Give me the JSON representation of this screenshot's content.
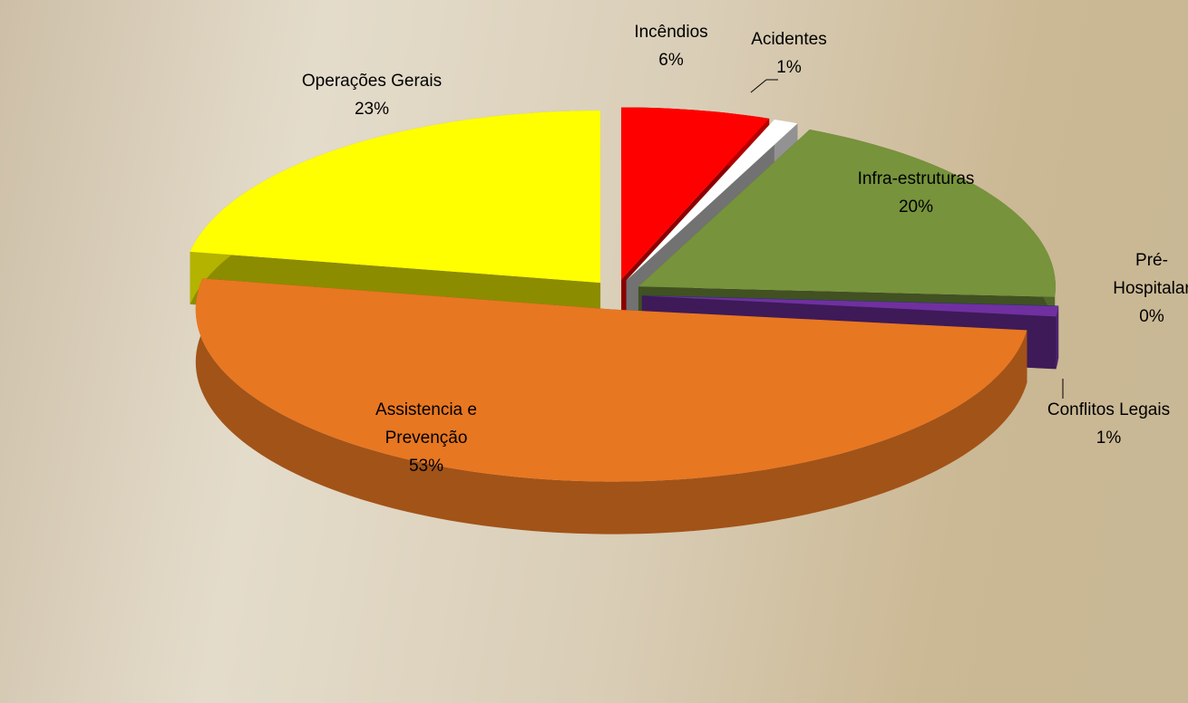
{
  "chart_data": {
    "type": "pie",
    "categories": [
      "Incêndios",
      "Acidentes",
      "Infra-estruturas",
      "Pré-Hospitalar",
      "Conflitos Legais",
      "Assistencia e Prevenção",
      "Operações Gerais"
    ],
    "values": [
      6,
      1,
      20,
      0,
      1,
      53,
      23
    ],
    "value_labels": [
      "6%",
      "1%",
      "20%",
      "0%",
      "1%",
      "53%",
      "23%"
    ],
    "colors": [
      "#ff0000",
      "#ffffff",
      "#77933c",
      "#2e75b6",
      "#7030a0",
      "#e87722",
      "#ffff00"
    ]
  }
}
